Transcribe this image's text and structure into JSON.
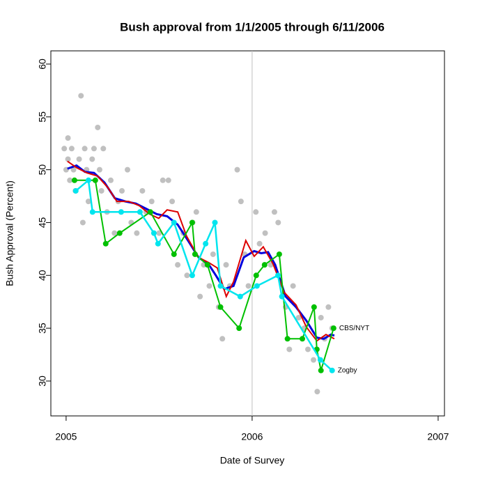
{
  "chart_data": {
    "type": "line",
    "title": "Bush approval from 1/1/2005 through 6/11/2006",
    "x_label": "Date of Survey",
    "y_label": "Bush Approval (Percent)",
    "xlim": [
      2004.918,
      2007.034
    ],
    "ylim": [
      26.7,
      61.25
    ],
    "xticks": [
      2005,
      2006,
      2007
    ],
    "yticks": [
      30,
      35,
      40,
      45,
      50,
      55,
      60
    ],
    "vline": 2006,
    "vline_color": "#c0c0c0",
    "series": [
      {
        "color": "#c0c0c0",
        "markers": true,
        "lines": false,
        "x": [
          2004.99,
          2005.0,
          2005.01,
          2005.01,
          2005.02,
          2005.03,
          2005.04,
          2005.05,
          2005.07,
          2005.08,
          2005.09,
          2005.1,
          2005.11,
          2005.12,
          2005.14,
          2005.15,
          2005.17,
          2005.18,
          2005.19,
          2005.2,
          2005.22,
          2005.24,
          2005.26,
          2005.28,
          2005.3,
          2005.33,
          2005.35,
          2005.38,
          2005.41,
          2005.43,
          2005.46,
          2005.5,
          2005.52,
          2005.55,
          2005.57,
          2005.6,
          2005.63,
          2005.65,
          2005.68,
          2005.7,
          2005.72,
          2005.74,
          2005.77,
          2005.79,
          2005.82,
          2005.84,
          2005.86,
          2005.88,
          2005.92,
          2005.94,
          2005.96,
          2005.98,
          2006.02,
          2006.04,
          2006.07,
          2006.1,
          2006.12,
          2006.14,
          2006.18,
          2006.2,
          2006.22,
          2006.25,
          2006.28,
          2006.3,
          2006.33,
          2006.35,
          2006.37,
          2006.39,
          2006.41,
          2006.43
        ],
        "values": [
          52,
          50,
          53,
          51,
          49,
          52,
          50,
          48,
          51,
          57,
          45,
          52,
          50,
          47,
          51,
          52,
          54,
          50,
          48,
          52,
          46,
          49,
          44,
          47,
          48,
          50,
          45,
          44,
          48,
          46,
          47,
          44,
          49,
          49,
          47,
          41,
          44,
          40,
          45,
          46,
          38,
          41,
          39,
          42,
          37,
          34,
          41,
          39,
          50,
          47,
          42,
          39,
          46,
          43,
          44,
          41,
          46,
          45,
          37,
          33,
          39,
          36,
          35,
          33,
          32,
          29,
          36,
          34,
          37,
          35
        ]
      },
      {
        "color": "#0000dd",
        "markers": false,
        "lines": true,
        "width": 3,
        "x": [
          2005.007,
          2005.056,
          2005.101,
          2005.15,
          2005.206,
          2005.262,
          2005.318,
          2005.375,
          2005.431,
          2005.487,
          2005.543,
          2005.6,
          2005.655,
          2005.712,
          2005.768,
          2005.805,
          2005.85,
          2005.9,
          2005.955,
          2006.011,
          2006.049,
          2006.086,
          2006.124,
          2006.18,
          2006.236,
          2006.292,
          2006.348,
          2006.386,
          2006.423,
          2006.442
        ],
        "values": [
          50.1,
          50.4,
          49.8,
          49.7,
          48.8,
          47.3,
          47,
          46.8,
          46.3,
          45.8,
          45.6,
          44.8,
          43.3,
          41.7,
          41,
          40,
          38.7,
          39,
          41.7,
          42.3,
          42.1,
          42.2,
          41,
          38,
          37,
          35.7,
          34.1,
          34,
          34.4,
          34.3
        ]
      },
      {
        "color": "#dd0000",
        "markers": false,
        "lines": true,
        "width": 2,
        "x": [
          2005.007,
          2005.056,
          2005.112,
          2005.169,
          2005.225,
          2005.273,
          2005.337,
          2005.393,
          2005.449,
          2005.498,
          2005.543,
          2005.6,
          2005.648,
          2005.712,
          2005.768,
          2005.813,
          2005.861,
          2005.9,
          2005.966,
          2006.011,
          2006.06,
          2006.112,
          2006.172,
          2006.236,
          2006.292,
          2006.348,
          2006.397,
          2006.442
        ],
        "values": [
          50.8,
          50.2,
          49.7,
          49.4,
          48.3,
          47,
          47,
          46.6,
          45.8,
          45.4,
          46.2,
          46,
          43.7,
          41.7,
          41.2,
          40.7,
          38,
          39.4,
          43.3,
          41.8,
          42.7,
          41.1,
          38.4,
          37.2,
          35.1,
          33.8,
          34.4,
          34
        ]
      },
      {
        "name": "CBS/NYT",
        "color": "#00c000",
        "markers": true,
        "lines": true,
        "width": 2,
        "x": [
          2005.045,
          2005.157,
          2005.213,
          2005.288,
          2005.453,
          2005.58,
          2005.678,
          2005.693,
          2005.76,
          2005.83,
          2005.93,
          2006.022,
          2006.067,
          2006.146,
          2006.19,
          2006.27,
          2006.333,
          2006.348,
          2006.37,
          2006.438
        ],
        "values": [
          49,
          49,
          43,
          44,
          46,
          42,
          45,
          42,
          41,
          37,
          35,
          40,
          41,
          42,
          34,
          34,
          37,
          33,
          31,
          35
        ]
      },
      {
        "name": "Zogby",
        "color": "#00e5ee",
        "markers": true,
        "lines": true,
        "width": 2.5,
        "x": [
          2005.052,
          2005.12,
          2005.142,
          2005.296,
          2005.397,
          2005.472,
          2005.494,
          2005.58,
          2005.678,
          2005.75,
          2005.8,
          2005.83,
          2005.936,
          2006.026,
          2006.139,
          2006.16,
          2006.367,
          2006.43
        ],
        "values": [
          48,
          49,
          46,
          46,
          46,
          44,
          43,
          45,
          40,
          43,
          45,
          39,
          38,
          39,
          40,
          38,
          32,
          31
        ]
      }
    ]
  }
}
